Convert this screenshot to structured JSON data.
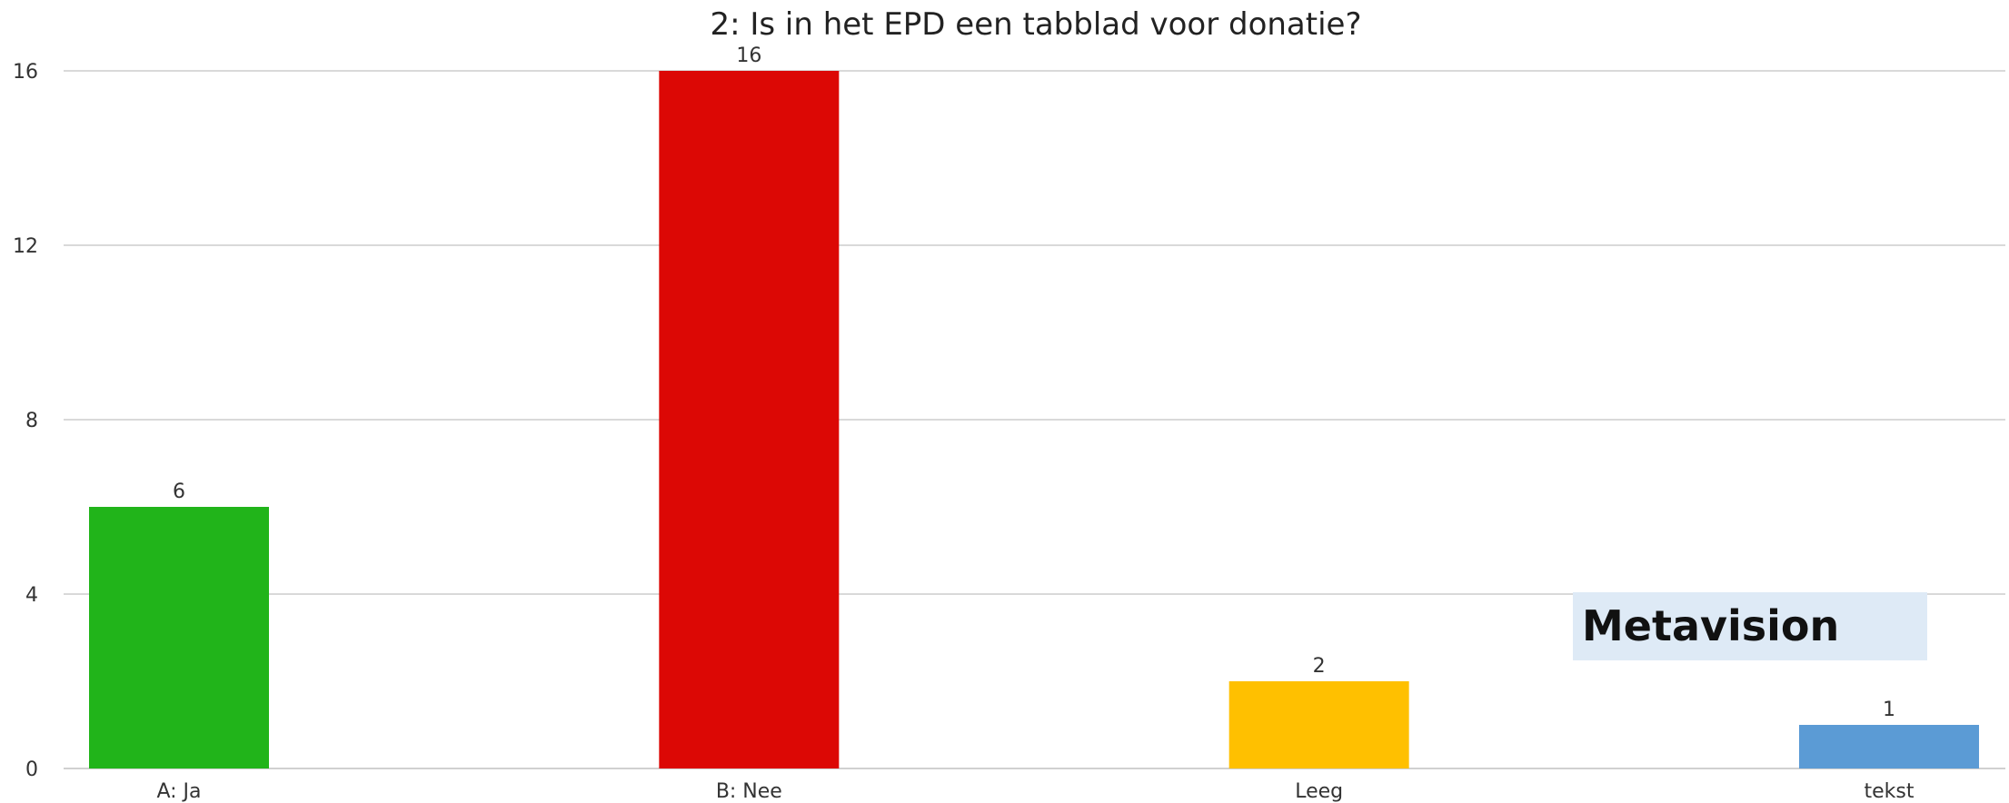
{
  "chart_data": {
    "type": "bar",
    "title": "2: Is in het EPD een tabblad voor donatie?",
    "xlabel": "",
    "ylabel": "",
    "categories": [
      "A: Ja",
      "B: Nee",
      "Leeg",
      "tekst"
    ],
    "values": [
      6,
      16,
      2,
      1
    ],
    "bar_colors": [
      "#21b41a",
      "#dc0805",
      "#ffc000",
      "#5b9bd5"
    ],
    "ylim": [
      0,
      16
    ],
    "yticks": [
      0,
      4,
      8,
      12,
      16
    ],
    "grid": true,
    "legend": "none",
    "data_labels": true,
    "annotation": {
      "text": "Metavision",
      "background": "#deeaf6"
    }
  }
}
